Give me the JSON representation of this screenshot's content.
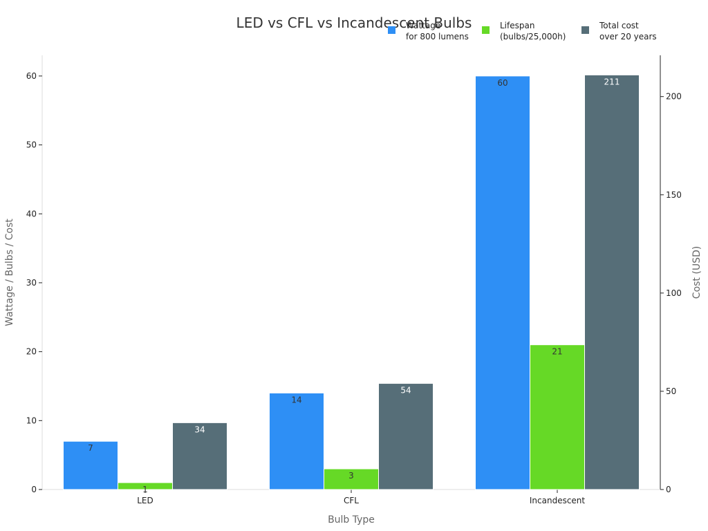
{
  "chart_data": {
    "type": "bar",
    "title": "LED vs CFL vs Incandescent Bulbs",
    "xlabel": "Bulb Type",
    "ylabel": "Wattage / Bulbs / Cost",
    "ylabel_right": "Cost (USD)",
    "categories": [
      "LED",
      "CFL",
      "Incandescent"
    ],
    "ylim": [
      0,
      63
    ],
    "ylim_right": [
      0,
      221
    ],
    "yticks": [
      0,
      10,
      20,
      30,
      40,
      50,
      60
    ],
    "yticks_right": [
      0,
      50,
      100,
      150,
      200
    ],
    "legend_position": "top-right",
    "series": [
      {
        "name": "Wattage\nfor 800 lumens",
        "axis": "left",
        "color": "#2e8ff5",
        "label_color": "#333333",
        "values": [
          7,
          14,
          60
        ],
        "labels": [
          "7",
          "14",
          "60"
        ]
      },
      {
        "name": "Lifespan\n(bulbs/25,000h)",
        "axis": "left",
        "color": "#66d926",
        "label_color": "#333333",
        "values": [
          1,
          3,
          21
        ],
        "labels": [
          "1",
          "3",
          "21"
        ]
      },
      {
        "name": "Total cost\nover 20 years",
        "axis": "right",
        "color": "#566e78",
        "label_color": "#ffffff",
        "values": [
          34,
          54,
          211
        ],
        "labels": [
          "34",
          "54",
          "211"
        ]
      }
    ]
  }
}
